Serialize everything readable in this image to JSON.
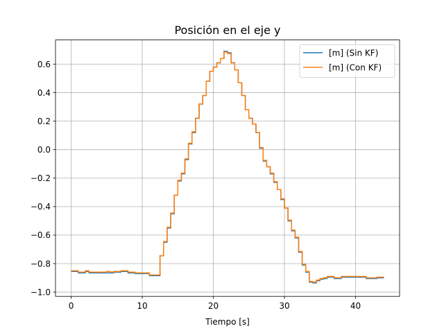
{
  "chart_data": {
    "type": "line",
    "title": "Posición en el eje y",
    "xlabel": "Tiempo [s]",
    "ylabel": "",
    "xlim": [
      -2.2,
      46.2
    ],
    "ylim": [
      -1.03,
      0.77
    ],
    "xticks": [
      0,
      10,
      20,
      30,
      40
    ],
    "xtick_labels": [
      "0",
      "10",
      "20",
      "30",
      "40"
    ],
    "yticks": [
      -1.0,
      -0.8,
      -0.6,
      -0.4,
      -0.2,
      0.0,
      0.2,
      0.4,
      0.6
    ],
    "ytick_labels": [
      "−1.0",
      "−0.8",
      "−0.6",
      "−0.4",
      "−0.2",
      "0.0",
      "0.2",
      "0.4",
      "0.6"
    ],
    "grid": true,
    "legend_position": "top-right",
    "step": true,
    "series": [
      {
        "name": "[m] (Sin KF)",
        "color": "#1f77b4",
        "x": [
          0,
          0.5,
          1,
          1.5,
          2,
          2.5,
          3,
          3.5,
          4,
          4.5,
          5,
          5.5,
          6,
          6.5,
          7,
          7.5,
          8,
          8.5,
          9,
          9.5,
          10,
          10.5,
          11,
          11.5,
          12,
          12.5,
          13,
          13.5,
          14,
          14.5,
          15,
          15.5,
          16,
          16.5,
          17,
          17.5,
          18,
          18.5,
          19,
          19.5,
          20,
          20.5,
          21,
          21.5,
          22,
          22.5,
          23,
          23.5,
          24,
          24.5,
          25,
          25.5,
          26,
          26.5,
          27,
          27.5,
          28,
          28.5,
          29,
          29.5,
          30,
          30.5,
          31,
          31.5,
          32,
          32.5,
          33,
          33.5,
          34,
          34.5,
          35,
          35.5,
          36,
          36.5,
          37,
          37.5,
          38,
          38.5,
          39,
          39.5,
          40,
          40.5,
          41,
          41.5,
          42,
          42.5,
          43,
          43.5,
          44
        ],
        "y": [
          -0.855,
          -0.855,
          -0.865,
          -0.865,
          -0.855,
          -0.865,
          -0.865,
          -0.865,
          -0.865,
          -0.865,
          -0.865,
          -0.865,
          -0.86,
          -0.86,
          -0.855,
          -0.855,
          -0.865,
          -0.865,
          -0.87,
          -0.87,
          -0.87,
          -0.87,
          -0.885,
          -0.885,
          -0.885,
          -0.745,
          -0.65,
          -0.55,
          -0.45,
          -0.32,
          -0.22,
          -0.17,
          -0.07,
          0.04,
          0.12,
          0.22,
          0.32,
          0.38,
          0.48,
          0.55,
          0.58,
          0.61,
          0.64,
          0.69,
          0.68,
          0.61,
          0.56,
          0.47,
          0.38,
          0.28,
          0.22,
          0.18,
          0.12,
          0.01,
          -0.08,
          -0.12,
          -0.17,
          -0.23,
          -0.28,
          -0.35,
          -0.41,
          -0.5,
          -0.57,
          -0.62,
          -0.72,
          -0.81,
          -0.86,
          -0.93,
          -0.935,
          -0.92,
          -0.91,
          -0.905,
          -0.895,
          -0.895,
          -0.905,
          -0.905,
          -0.895,
          -0.895,
          -0.895,
          -0.895,
          -0.895,
          -0.895,
          -0.895,
          -0.905,
          -0.905,
          -0.905,
          -0.9,
          -0.9,
          -0.9
        ],
        "x_note_omitted": true
      },
      {
        "name": "[m] (Con KF)",
        "color": "#ff7f0e",
        "x": [
          0,
          0.5,
          1,
          1.5,
          2,
          2.5,
          3,
          3.5,
          4,
          4.5,
          5,
          5.5,
          6,
          6.5,
          7,
          7.5,
          8,
          8.5,
          9,
          9.5,
          10,
          10.5,
          11,
          11.5,
          12,
          12.5,
          13,
          13.5,
          14,
          14.5,
          15,
          15.5,
          16,
          16.5,
          17,
          17.5,
          18,
          18.5,
          19,
          19.5,
          20,
          20.5,
          21,
          21.5,
          22,
          22.5,
          23,
          23.5,
          24,
          24.5,
          25,
          25.5,
          26,
          26.5,
          27,
          27.5,
          28,
          28.5,
          29,
          29.5,
          30,
          30.5,
          31,
          31.5,
          32,
          32.5,
          33,
          33.5,
          34,
          34.5,
          35,
          35.5,
          36,
          36.5,
          37,
          37.5,
          38,
          38.5,
          39,
          39.5,
          40,
          40.5,
          41,
          41.5,
          42,
          42.5,
          43,
          43.5,
          44
        ],
        "y": [
          -0.85,
          -0.85,
          -0.86,
          -0.86,
          -0.85,
          -0.86,
          -0.86,
          -0.86,
          -0.86,
          -0.86,
          -0.855,
          -0.86,
          -0.855,
          -0.855,
          -0.85,
          -0.85,
          -0.86,
          -0.86,
          -0.865,
          -0.865,
          -0.865,
          -0.865,
          -0.88,
          -0.88,
          -0.88,
          -0.745,
          -0.645,
          -0.545,
          -0.445,
          -0.32,
          -0.215,
          -0.165,
          -0.065,
          0.045,
          0.125,
          0.22,
          0.32,
          0.38,
          0.48,
          0.55,
          0.58,
          0.61,
          0.64,
          0.685,
          0.675,
          0.61,
          0.56,
          0.47,
          0.38,
          0.28,
          0.22,
          0.18,
          0.12,
          0.015,
          -0.075,
          -0.12,
          -0.165,
          -0.225,
          -0.28,
          -0.345,
          -0.41,
          -0.495,
          -0.565,
          -0.615,
          -0.715,
          -0.805,
          -0.855,
          -0.925,
          -0.93,
          -0.915,
          -0.905,
          -0.9,
          -0.89,
          -0.89,
          -0.9,
          -0.9,
          -0.89,
          -0.89,
          -0.89,
          -0.89,
          -0.89,
          -0.89,
          -0.89,
          -0.9,
          -0.9,
          -0.9,
          -0.895,
          -0.895,
          -0.895
        ]
      }
    ]
  }
}
